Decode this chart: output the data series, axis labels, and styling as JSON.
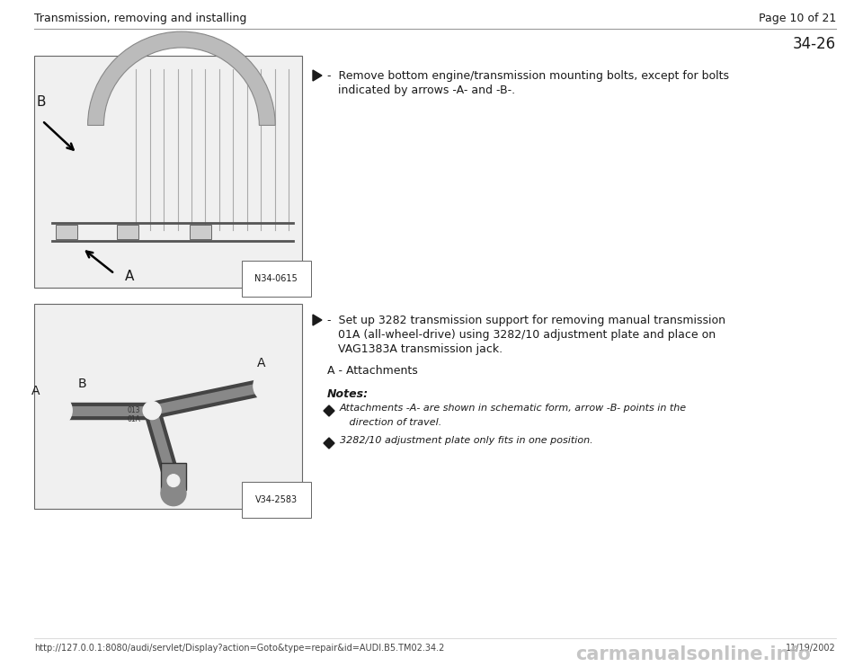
{
  "bg_color": "#ffffff",
  "header_left": "Transmission, removing and installing",
  "header_right": "Page 10 of 21",
  "page_number": "34-26",
  "section1": {
    "bullet_text_line1": "-  Remove bottom engine/transmission mounting bolts, except for bolts",
    "bullet_text_line2": "   indicated by arrows -A- and -B-.",
    "image_label": "N34-0615"
  },
  "section2": {
    "bullet_text_line1": "-  Set up 3282 transmission support for removing manual transmission",
    "bullet_text_line2": "   01A (all-wheel-drive) using 3282/10 adjustment plate and place on",
    "bullet_text_line3": "   VAG1383A transmission jack.",
    "label_A": "A - Attachments",
    "notes_title": "Notes:",
    "note1_line1": "Attachments -A- are shown in schematic form, arrow -B- points in the",
    "note1_line2": "   direction of travel.",
    "note2": "3282/10 adjustment plate only fits in one position.",
    "image_label": "V34-2583"
  },
  "footer_url": "http://127.0.0.1:8080/audi/servlet/Display?action=Goto&type=repair&id=AUDI.B5.TM02.34.2",
  "footer_date": "11/19/2002",
  "footer_watermark": "carmanualsonline.info",
  "text_color": "#1a1a1a",
  "font_size_header": 9,
  "font_size_body": 9,
  "font_size_page_num": 12,
  "font_size_notes": 8.5,
  "font_size_footer": 7
}
